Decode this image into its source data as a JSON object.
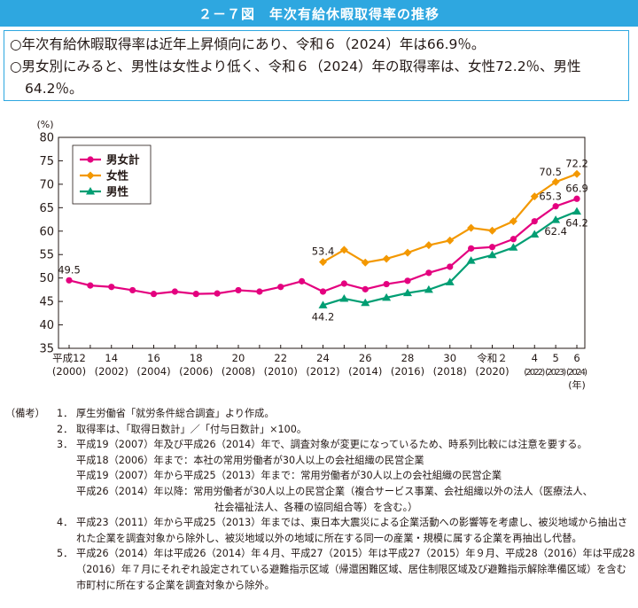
{
  "header": {
    "title": "２－７図　年次有給休暇取得率の推移"
  },
  "summary": {
    "line1": "○年次有給休暇取得率は近年上昇傾向にあり、令和６（2024）年は66.9％。",
    "line2a": "○男女別にみると、男性は女性より低く、令和６（2024）年の取得率は、女性72.2％、男性",
    "line2b": "64.2％。"
  },
  "colors": {
    "header_bg": "#2ea7e0",
    "total": "#e4007f",
    "female": "#f39800",
    "male": "#009e73"
  },
  "chart_data": {
    "type": "line",
    "y_unit_label": "(%)",
    "x_unit_label": "(年)",
    "ylim": [
      35,
      80
    ],
    "yticks": [
      35,
      40,
      45,
      50,
      55,
      60,
      65,
      70,
      75,
      80
    ],
    "grid": false,
    "legend_position": "top-left",
    "x": [
      2000,
      2001,
      2002,
      2003,
      2004,
      2005,
      2006,
      2007,
      2008,
      2009,
      2010,
      2011,
      2012,
      2013,
      2014,
      2015,
      2016,
      2017,
      2018,
      2019,
      2020,
      2021,
      2022,
      2023,
      2024
    ],
    "xticks": [
      {
        "x": 2000,
        "line1": "平成12",
        "line2": "(2000)"
      },
      {
        "x": 2002,
        "line1": "14",
        "line2": "(2002)"
      },
      {
        "x": 2004,
        "line1": "16",
        "line2": "(2004)"
      },
      {
        "x": 2006,
        "line1": "18",
        "line2": "(2006)"
      },
      {
        "x": 2008,
        "line1": "20",
        "line2": "(2008)"
      },
      {
        "x": 2010,
        "line1": "22",
        "line2": "(2010)"
      },
      {
        "x": 2012,
        "line1": "24",
        "line2": "(2012)"
      },
      {
        "x": 2014,
        "line1": "26",
        "line2": "(2014)"
      },
      {
        "x": 2016,
        "line1": "28",
        "line2": "(2016)"
      },
      {
        "x": 2018,
        "line1": "30",
        "line2": "(2018)"
      },
      {
        "x": 2020,
        "line1": "令和２",
        "line2": "(2020)"
      },
      {
        "x": 2022,
        "line1": "4",
        "line2": "(2022)"
      },
      {
        "x": 2023,
        "line1": "5",
        "line2": "(2023)"
      },
      {
        "x": 2024,
        "line1": "6",
        "line2": "(2024)"
      }
    ],
    "series": [
      {
        "name": "男女計",
        "color": "#e4007f",
        "marker": "circle",
        "values": [
          49.5,
          48.4,
          48.1,
          47.4,
          46.6,
          47.1,
          46.6,
          46.7,
          47.4,
          47.1,
          48.1,
          49.3,
          47.1,
          48.8,
          47.6,
          48.7,
          49.4,
          51.1,
          52.4,
          56.3,
          56.6,
          58.3,
          62.1,
          65.3,
          66.9
        ],
        "labels": [
          {
            "index": 0,
            "text": "49.5",
            "pos": "above"
          },
          {
            "index": 23,
            "text": "65.3",
            "pos": "above-left"
          },
          {
            "index": 24,
            "text": "66.9",
            "pos": "above"
          }
        ]
      },
      {
        "name": "女性",
        "color": "#f39800",
        "marker": "diamond",
        "values": [
          null,
          null,
          null,
          null,
          null,
          null,
          null,
          null,
          null,
          null,
          null,
          null,
          53.4,
          56.0,
          53.3,
          54.1,
          55.4,
          57.0,
          58.0,
          60.7,
          60.1,
          62.1,
          67.4,
          70.5,
          72.2
        ],
        "labels": [
          {
            "index": 12,
            "text": "53.4",
            "pos": "above"
          },
          {
            "index": 23,
            "text": "70.5",
            "pos": "above-left"
          },
          {
            "index": 24,
            "text": "72.2",
            "pos": "above"
          }
        ]
      },
      {
        "name": "男性",
        "color": "#009e73",
        "marker": "triangle",
        "values": [
          null,
          null,
          null,
          null,
          null,
          null,
          null,
          null,
          null,
          null,
          null,
          null,
          44.2,
          45.6,
          44.7,
          45.8,
          46.8,
          47.5,
          49.1,
          53.7,
          54.9,
          56.5,
          59.3,
          62.4,
          64.2
        ],
        "labels": [
          {
            "index": 12,
            "text": "44.2",
            "pos": "below"
          },
          {
            "index": 23,
            "text": "62.4",
            "pos": "below"
          },
          {
            "index": 24,
            "text": "64.2",
            "pos": "below"
          }
        ]
      }
    ]
  },
  "notes": {
    "lead": "（備考）",
    "items": [
      {
        "num": "1．",
        "text": "厚生労働省「就労条件総合調査」より作成。"
      },
      {
        "num": "2．",
        "text": "取得率は、「取得日数計」／「付与日数計」×100。"
      },
      {
        "num": "3．",
        "text": "平成19（2007）年及び平成26（2014）年で、調査対象が変更になっているため、時系列比較には注意を要する。"
      }
    ],
    "n3_sub1": "平成18（2006）年まで：本社の常用労働者が30人以上の会社組織の民営企業",
    "n3_sub2": "平成19（2007）年から平成25（2013）年まで：常用労働者が30人以上の会社組織の民営企業",
    "n3_sub3": "平成26（2014）年以降：常用労働者が30人以上の民営企業（複合サービス事業、会社組織以外の法人（医療法人、",
    "n3_sub4": "社会福祉法人、各種の協同組合等）を含む。）",
    "n4_num": "4．",
    "n4_text": "平成23（2011）年から平成25（2013）年までは、東日本大震災による企業活動への影響等を考慮し、被災地域から抽出された企業を調査対象から除外し、被災地域以外の地域に所在する同一の産業・規模に属する企業を再抽出し代替。",
    "n5_num": "5．",
    "n5_text": "平成26（2014）年は平成26（2014）年４月、平成27（2015）年は平成27（2015）年９月、平成28（2016）年は平成28（2016）年７月にそれぞれ設定されている避難指示区域（帰還困難区域、居住制限区域及び避難指示解除準備区域）を含む市町村に所在する企業を調査対象から除外。"
  }
}
